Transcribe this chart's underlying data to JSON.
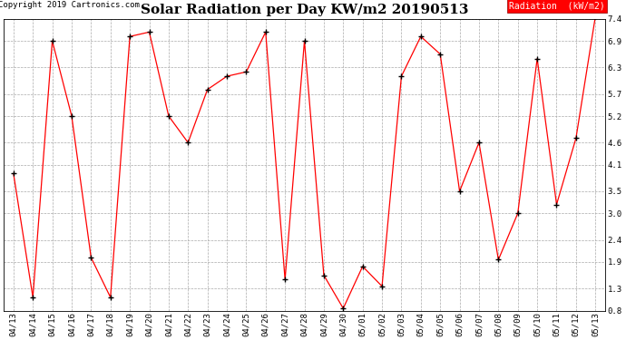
{
  "title": "Solar Radiation per Day KW/m2 20190513",
  "copyright": "Copyright 2019 Cartronics.com",
  "legend_label": "Radiation  (kW/m2)",
  "dates": [
    "04/13",
    "04/14",
    "04/15",
    "04/16",
    "04/17",
    "04/18",
    "04/19",
    "04/20",
    "04/21",
    "04/22",
    "04/23",
    "04/24",
    "04/25",
    "04/26",
    "04/27",
    "04/28",
    "04/29",
    "04/30",
    "05/01",
    "05/02",
    "05/03",
    "05/04",
    "05/05",
    "05/06",
    "05/07",
    "05/08",
    "05/09",
    "05/10",
    "05/11",
    "05/12",
    "05/13"
  ],
  "values": [
    3.9,
    1.1,
    6.9,
    5.2,
    2.0,
    1.1,
    7.0,
    7.1,
    5.2,
    4.6,
    5.8,
    6.1,
    6.2,
    7.1,
    1.5,
    6.9,
    1.6,
    0.85,
    1.8,
    1.35,
    6.1,
    7.0,
    6.6,
    3.5,
    4.6,
    1.95,
    3.0,
    6.5,
    3.2,
    4.7,
    7.45
  ],
  "ylim_min": 0.8,
  "ylim_max": 7.4,
  "yticks": [
    0.8,
    1.3,
    1.9,
    2.4,
    3.0,
    3.5,
    4.1,
    4.6,
    5.2,
    5.7,
    6.3,
    6.9,
    7.4
  ],
  "line_color": "red",
  "marker_color": "black",
  "bg_color": "white",
  "grid_color": "#aaaaaa",
  "title_fontsize": 11,
  "copyright_fontsize": 6.5,
  "tick_fontsize": 6.5,
  "legend_bg": "red",
  "legend_fg": "white",
  "legend_fontsize": 7
}
